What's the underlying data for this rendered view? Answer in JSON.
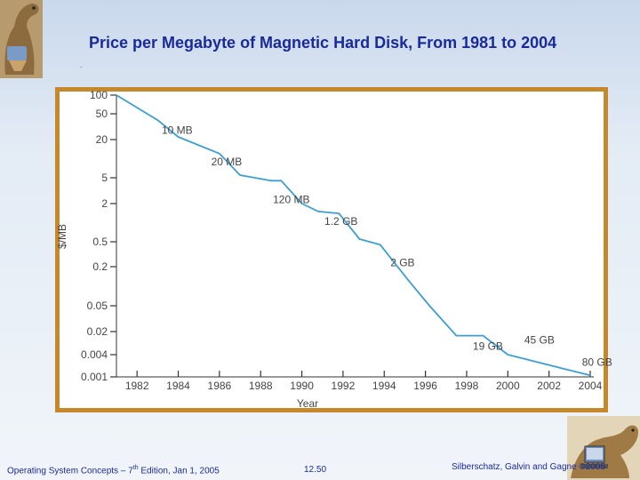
{
  "slide": {
    "title": "Price per Megabyte of Magnetic Hard Disk, From 1981 to 2004",
    "footer_left_prefix": "Operating System Concepts – 7",
    "footer_left_sup": "th",
    "footer_left_suffix": " Edition, Jan 1, 2005",
    "footer_mid": "12.50",
    "footer_right": "Silberschatz, Galvin and Gagne ©2005"
  },
  "chart_data": {
    "type": "line",
    "title": "",
    "xlabel": "Year",
    "ylabel": "$/MB",
    "xlim": [
      1981,
      2004
    ],
    "x_ticks": [
      1982,
      1984,
      1986,
      1988,
      1990,
      1992,
      1994,
      1996,
      1998,
      2000,
      2002,
      2004
    ],
    "y_ticks": [
      100,
      50,
      20,
      5,
      2,
      0.5,
      0.2,
      0.05,
      0.02,
      0.004,
      0.001
    ],
    "y_tick_labels": [
      "100",
      "50",
      "20",
      "5",
      "2",
      "0.5",
      "0.2",
      "0.05",
      "0.02",
      "0.004",
      "0.001"
    ],
    "series": [
      {
        "name": "Price per MB",
        "points": [
          {
            "x": 1981,
            "y": 100
          },
          {
            "x": 1983,
            "y": 40
          },
          {
            "x": 1984,
            "y": 22
          },
          {
            "x": 1986,
            "y": 12
          },
          {
            "x": 1987,
            "y": 5.5
          },
          {
            "x": 1988.5,
            "y": 4.5
          },
          {
            "x": 1989,
            "y": 4.5
          },
          {
            "x": 1990,
            "y": 2
          },
          {
            "x": 1990.8,
            "y": 1.5
          },
          {
            "x": 1991.8,
            "y": 1.4
          },
          {
            "x": 1992.8,
            "y": 0.55
          },
          {
            "x": 1993.8,
            "y": 0.45
          },
          {
            "x": 1995.2,
            "y": 0.12
          },
          {
            "x": 1996.2,
            "y": 0.05
          },
          {
            "x": 1997.5,
            "y": 0.015
          },
          {
            "x": 1998.8,
            "y": 0.015
          },
          {
            "x": 2000,
            "y": 0.004
          },
          {
            "x": 2004,
            "y": 0.0011
          }
        ]
      }
    ],
    "annotations": [
      {
        "text": "10 MB",
        "x": 1983.2,
        "y": 28
      },
      {
        "text": "20 MB",
        "x": 1985.6,
        "y": 9
      },
      {
        "text": "120 MB",
        "x": 1988.6,
        "y": 2.3
      },
      {
        "text": "1.2 GB",
        "x": 1991.1,
        "y": 1.05
      },
      {
        "text": "2 GB",
        "x": 1994.3,
        "y": 0.23
      },
      {
        "text": "19 GB",
        "x": 1998.3,
        "y": 0.0072
      },
      {
        "text": "45 GB",
        "x": 2000.8,
        "y": 0.011
      },
      {
        "text": "80 GB",
        "x": 2003.6,
        "y": 0.0025
      }
    ]
  }
}
